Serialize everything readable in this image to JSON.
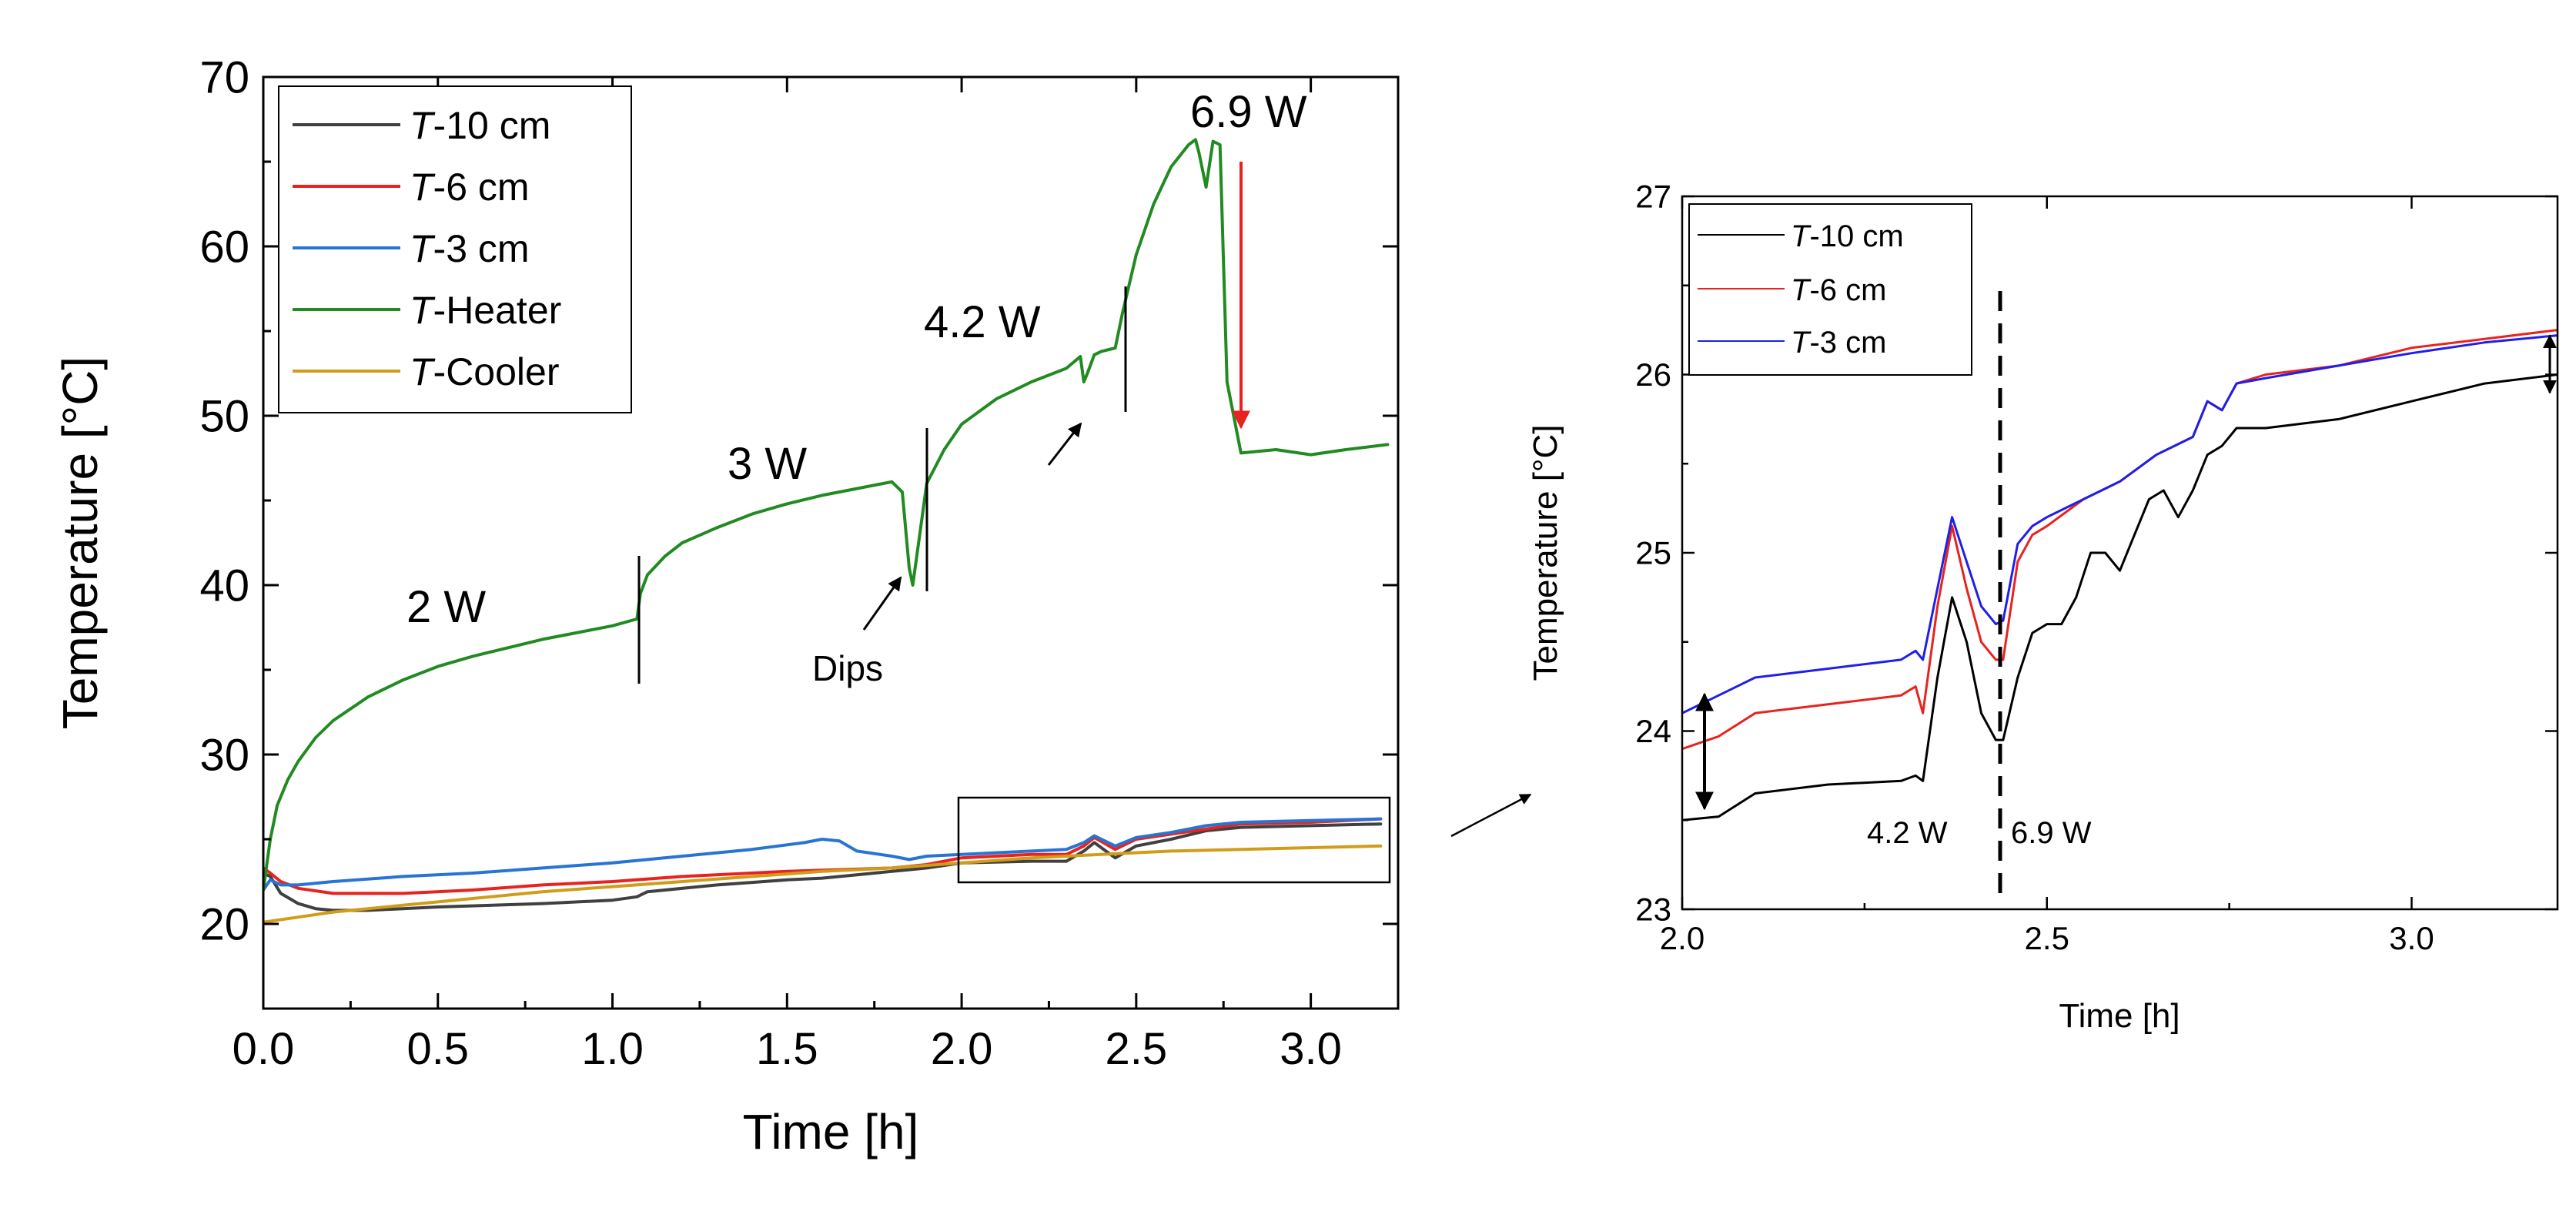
{
  "chart_data": [
    {
      "type": "line",
      "xlabel": "Time [h]",
      "ylabel": "Temperature [°C]",
      "xlim": [
        0.0,
        3.25
      ],
      "ylim": [
        15,
        70
      ],
      "x_ticks": [
        0.0,
        0.5,
        1.0,
        1.5,
        2.0,
        2.5,
        3.0
      ],
      "x_tick_labels": [
        "0.0",
        "0.5",
        "1.0",
        "1.5",
        "2.0",
        "2.5",
        "3.0"
      ],
      "y_ticks": [
        20,
        30,
        40,
        50,
        60,
        70
      ],
      "y_tick_labels": [
        "20",
        "30",
        "40",
        "50",
        "60",
        "70"
      ],
      "legend_position": "top-left",
      "series": [
        {
          "name_italic": "T",
          "name_rest": "-10 cm",
          "color": "#404040",
          "x": [
            0.0,
            0.02,
            0.05,
            0.1,
            0.15,
            0.2,
            0.3,
            0.5,
            0.8,
            1.0,
            1.07,
            1.1,
            1.3,
            1.5,
            1.6,
            1.7,
            1.8,
            1.85,
            1.9,
            2.0,
            2.2,
            2.3,
            2.35,
            2.38,
            2.44,
            2.5,
            2.6,
            2.7,
            2.8,
            3.0,
            3.2
          ],
          "y": [
            23.0,
            22.8,
            21.8,
            21.2,
            20.9,
            20.8,
            20.8,
            21.0,
            21.2,
            21.4,
            21.6,
            21.9,
            22.3,
            22.6,
            22.7,
            22.9,
            23.1,
            23.2,
            23.3,
            23.6,
            23.7,
            23.7,
            24.3,
            24.8,
            23.9,
            24.6,
            25.0,
            25.5,
            25.7,
            25.8,
            25.9
          ]
        },
        {
          "name_italic": "T",
          "name_rest": "-6 cm",
          "color": "#e8231f",
          "x": [
            0.0,
            0.02,
            0.05,
            0.1,
            0.2,
            0.4,
            0.6,
            0.8,
            1.0,
            1.2,
            1.5,
            1.8,
            1.85,
            1.9,
            2.0,
            2.2,
            2.3,
            2.35,
            2.38,
            2.44,
            2.5,
            2.6,
            2.7,
            2.8,
            3.0,
            3.2
          ],
          "y": [
            23.3,
            23.0,
            22.5,
            22.1,
            21.8,
            21.8,
            22.0,
            22.3,
            22.5,
            22.8,
            23.1,
            23.3,
            23.4,
            23.5,
            23.9,
            24.1,
            24.1,
            24.6,
            25.1,
            24.4,
            25.0,
            25.3,
            25.6,
            25.9,
            26.0,
            26.2
          ]
        },
        {
          "name_italic": "T",
          "name_rest": "-3 cm",
          "color": "#2874d4",
          "x": [
            0.0,
            0.02,
            0.05,
            0.1,
            0.2,
            0.4,
            0.6,
            0.8,
            1.0,
            1.2,
            1.4,
            1.55,
            1.6,
            1.65,
            1.7,
            1.8,
            1.85,
            1.9,
            2.0,
            2.2,
            2.3,
            2.35,
            2.38,
            2.44,
            2.5,
            2.6,
            2.7,
            2.8,
            3.0,
            3.2
          ],
          "y": [
            22.0,
            22.6,
            22.3,
            22.3,
            22.5,
            22.8,
            23.0,
            23.3,
            23.6,
            24.0,
            24.4,
            24.8,
            25.0,
            24.9,
            24.3,
            24.0,
            23.8,
            24.0,
            24.1,
            24.3,
            24.4,
            24.8,
            25.2,
            24.6,
            25.1,
            25.4,
            25.8,
            26.0,
            26.1,
            26.2
          ]
        },
        {
          "name_italic": "T",
          "name_rest": "-Heater",
          "color": "#218a21",
          "x": [
            0.0,
            0.01,
            0.02,
            0.04,
            0.07,
            0.1,
            0.15,
            0.2,
            0.3,
            0.4,
            0.5,
            0.6,
            0.7,
            0.8,
            0.9,
            1.0,
            1.07,
            1.08,
            1.1,
            1.15,
            1.2,
            1.3,
            1.4,
            1.5,
            1.6,
            1.7,
            1.8,
            1.83,
            1.85,
            1.86,
            1.88,
            1.9,
            1.95,
            2.0,
            2.1,
            2.2,
            2.3,
            2.34,
            2.35,
            2.36,
            2.38,
            2.4,
            2.44,
            2.46,
            2.5,
            2.55,
            2.6,
            2.65,
            2.67,
            2.68,
            2.7,
            2.72,
            2.74,
            2.76,
            2.8,
            2.9,
            3.0,
            3.1,
            3.22
          ],
          "y": [
            22.0,
            23.5,
            25.0,
            27.0,
            28.5,
            29.6,
            31.0,
            32.0,
            33.4,
            34.4,
            35.2,
            35.8,
            36.3,
            36.8,
            37.2,
            37.6,
            38.0,
            39.5,
            40.6,
            41.7,
            42.5,
            43.4,
            44.2,
            44.8,
            45.3,
            45.7,
            46.1,
            45.5,
            41.0,
            40.0,
            43.0,
            46.0,
            48.0,
            49.5,
            51.0,
            52.0,
            52.8,
            53.5,
            52.0,
            52.5,
            53.6,
            53.8,
            54.0,
            56.0,
            59.5,
            62.5,
            64.7,
            66.0,
            66.3,
            65.5,
            63.5,
            66.2,
            66.0,
            52.0,
            47.8,
            48.0,
            47.7,
            48.0,
            48.3
          ]
        },
        {
          "name_italic": "T",
          "name_rest": "-Cooler",
          "color": "#d19c19",
          "x": [
            0.0,
            0.1,
            0.2,
            0.4,
            0.6,
            0.8,
            1.0,
            1.2,
            1.4,
            1.6,
            1.8,
            2.0,
            2.2,
            2.4,
            2.6,
            2.8,
            3.0,
            3.2
          ],
          "y": [
            20.1,
            20.4,
            20.7,
            21.1,
            21.5,
            21.9,
            22.2,
            22.5,
            22.8,
            23.1,
            23.3,
            23.6,
            23.9,
            24.1,
            24.3,
            24.4,
            24.5,
            24.6
          ]
        }
      ],
      "annotations": [
        "2 W",
        "3 W",
        "4.2 W",
        "6.9 W",
        "Dips"
      ]
    },
    {
      "type": "line",
      "xlabel": "Time [h]",
      "ylabel": "Temperature [°C]",
      "xlim": [
        2.0,
        3.2
      ],
      "ylim": [
        23,
        27
      ],
      "x_ticks": [
        2.0,
        2.5,
        3.0
      ],
      "x_tick_labels": [
        "2.0",
        "2.5",
        "3.0"
      ],
      "y_ticks": [
        23,
        24,
        25,
        26,
        27
      ],
      "y_tick_labels": [
        "23",
        "24",
        "25",
        "26",
        "27"
      ],
      "legend_position": "top-left",
      "series": [
        {
          "name_italic": "T",
          "name_rest": "-10 cm",
          "color": "#000000",
          "x": [
            2.0,
            2.05,
            2.1,
            2.2,
            2.3,
            2.32,
            2.33,
            2.35,
            2.37,
            2.39,
            2.41,
            2.43,
            2.44,
            2.46,
            2.48,
            2.5,
            2.52,
            2.54,
            2.56,
            2.58,
            2.6,
            2.62,
            2.64,
            2.66,
            2.68,
            2.7,
            2.72,
            2.74,
            2.76,
            2.8,
            2.9,
            3.0,
            3.1,
            3.2
          ],
          "y": [
            23.5,
            23.52,
            23.65,
            23.7,
            23.72,
            23.75,
            23.72,
            24.3,
            24.75,
            24.5,
            24.1,
            23.95,
            23.95,
            24.3,
            24.55,
            24.6,
            24.6,
            24.75,
            25.0,
            25.0,
            24.9,
            25.1,
            25.3,
            25.35,
            25.2,
            25.35,
            25.55,
            25.6,
            25.7,
            25.7,
            25.75,
            25.85,
            25.95,
            26.0
          ]
        },
        {
          "name_italic": "T",
          "name_rest": "-6 cm",
          "color": "#e8231f",
          "x": [
            2.0,
            2.05,
            2.1,
            2.2,
            2.3,
            2.32,
            2.33,
            2.35,
            2.37,
            2.39,
            2.41,
            2.43,
            2.44,
            2.46,
            2.48,
            2.5,
            2.55,
            2.6,
            2.65,
            2.7,
            2.72,
            2.74,
            2.76,
            2.8,
            2.9,
            3.0,
            3.1,
            3.2
          ],
          "y": [
            23.9,
            23.97,
            24.1,
            24.15,
            24.2,
            24.25,
            24.1,
            24.7,
            25.15,
            24.8,
            24.5,
            24.4,
            24.4,
            24.95,
            25.1,
            25.15,
            25.3,
            25.4,
            25.55,
            25.65,
            25.85,
            25.8,
            25.95,
            26.0,
            26.05,
            26.15,
            26.2,
            26.25
          ]
        },
        {
          "name_italic": "T",
          "name_rest": "-3 cm",
          "color": "#1f1fe8",
          "x": [
            2.0,
            2.05,
            2.1,
            2.2,
            2.3,
            2.32,
            2.33,
            2.35,
            2.37,
            2.39,
            2.41,
            2.43,
            2.44,
            2.46,
            2.48,
            2.5,
            2.55,
            2.6,
            2.65,
            2.7,
            2.72,
            2.74,
            2.76,
            2.8,
            2.9,
            3.0,
            3.1,
            3.2
          ],
          "y": [
            24.1,
            24.2,
            24.3,
            24.35,
            24.4,
            24.45,
            24.4,
            24.8,
            25.2,
            24.95,
            24.7,
            24.6,
            24.62,
            25.05,
            25.15,
            25.2,
            25.3,
            25.4,
            25.55,
            25.65,
            25.85,
            25.8,
            25.95,
            25.98,
            26.05,
            26.12,
            26.18,
            26.22
          ]
        }
      ],
      "annotations": [
        "4.2 W",
        "6.9 W"
      ]
    }
  ]
}
